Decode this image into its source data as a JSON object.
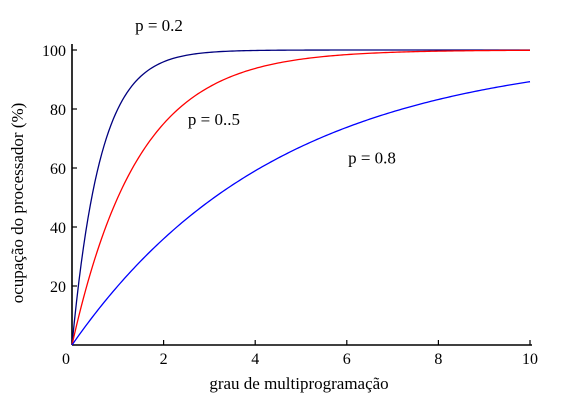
{
  "chart_data": {
    "type": "line",
    "xlabel": "grau de multiprogramação",
    "ylabel": "ocupação do processador  (%)",
    "xlim": [
      0,
      10
    ],
    "ylim": [
      0,
      100
    ],
    "x_ticks": [
      0,
      2,
      4,
      6,
      8,
      10
    ],
    "y_ticks": [
      20,
      40,
      60,
      80,
      100
    ],
    "grid": false,
    "series": [
      {
        "formula": "100*(1-p^n)",
        "p": 0.2,
        "color": "#00007f",
        "x": [
          0,
          0.25,
          0.5,
          0.75,
          1,
          1.25,
          1.5,
          1.75,
          2,
          2.5,
          3,
          3.5,
          4,
          5,
          6,
          7,
          8,
          9,
          10
        ],
        "values": [
          0,
          33.1,
          55.3,
          70.1,
          80.0,
          86.6,
          91.1,
          94.0,
          96.0,
          98.2,
          99.2,
          99.6,
          99.8,
          99.97,
          99.99,
          100,
          100,
          100,
          100
        ]
      },
      {
        "formula": "100*(1-p^n)",
        "p": 0.5,
        "color": "#ff0000",
        "x": [
          0,
          0.25,
          0.5,
          0.75,
          1,
          1.25,
          1.5,
          1.75,
          2,
          2.5,
          3,
          3.5,
          4,
          5,
          6,
          7,
          8,
          9,
          10
        ],
        "values": [
          0,
          15.9,
          29.3,
          40.5,
          50.0,
          58.0,
          64.6,
          70.3,
          75.0,
          82.3,
          87.5,
          91.2,
          93.8,
          96.9,
          98.4,
          99.2,
          99.6,
          99.8,
          99.9
        ]
      },
      {
        "formula": "100*(1-p^n)",
        "p": 0.8,
        "color": "#0000ff",
        "x": [
          0,
          0.5,
          1,
          1.5,
          2,
          2.5,
          3,
          3.5,
          4,
          4.5,
          5,
          5.5,
          6,
          6.5,
          7,
          7.5,
          8,
          8.5,
          9,
          9.5,
          10
        ],
        "values": [
          0,
          10.6,
          20.0,
          28.4,
          36.0,
          42.8,
          48.8,
          54.2,
          59.0,
          63.4,
          67.2,
          70.7,
          73.8,
          76.6,
          79.0,
          81.2,
          83.2,
          85.0,
          86.6,
          88.0,
          89.3
        ]
      }
    ],
    "annotations": [
      {
        "text": "p = 0.2",
        "x": 1.9,
        "y": 106.5
      },
      {
        "text": "p = 0..5",
        "x": 3.1,
        "y": 74.5
      },
      {
        "text": "p = 0.8",
        "x": 6.55,
        "y": 61.5
      }
    ]
  }
}
